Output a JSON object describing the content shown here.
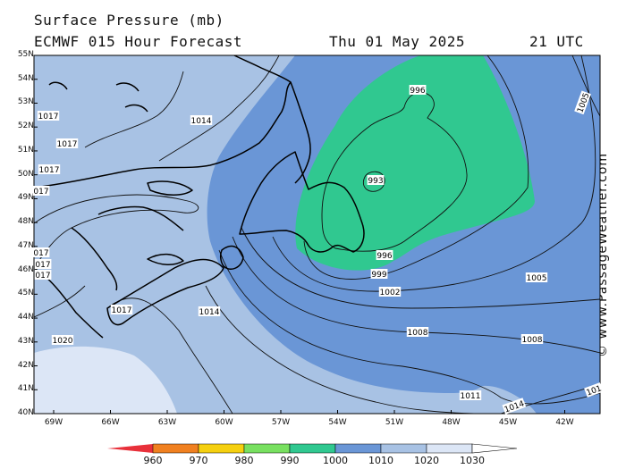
{
  "header": {
    "title": "Surface Pressure (mb)",
    "model_line": "ECMWF 015 Hour Forecast",
    "date": "Thu 01 May 2025",
    "time": "21 UTC"
  },
  "credit": "© www.PassageWeather.com",
  "lat_labels": [
    "55N",
    "54N",
    "53N",
    "52N",
    "51N",
    "50N",
    "49N",
    "48N",
    "47N",
    "46N",
    "45N",
    "44N",
    "43N",
    "42N",
    "41N",
    "40N"
  ],
  "lon_labels": [
    "69W",
    "66W",
    "63W",
    "60W",
    "57W",
    "54W",
    "51W",
    "48W",
    "45W",
    "42W"
  ],
  "contour_labels": {
    "l996a": "996",
    "l993": "993",
    "l996b": "996",
    "l999": "999",
    "l1002": "1002",
    "l1005a": "1005",
    "l1005b": "1005",
    "l1008a": "1008",
    "l1008b": "1008",
    "l1011": "1011",
    "l1014a": "1014",
    "l1014b": "1014",
    "l1014c": "1014",
    "l1017a": "1017",
    "l1017b": "1017",
    "l1017c": "1017",
    "l1017d": "1017",
    "l1017e": "017",
    "l1017f": "017",
    "l1017g": "017",
    "l1017h": "017",
    "l1017i": "1017",
    "l1020": "1020",
    "l101r": "101"
  },
  "colorbar": {
    "labels": [
      "960",
      "970",
      "980",
      "990",
      "1000",
      "1010",
      "1020",
      "1030"
    ],
    "colors": [
      "#e8303a",
      "#f08020",
      "#f5d010",
      "#78e060",
      "#30c890",
      "#6a96d6",
      "#a8c2e4",
      "#dce6f6"
    ]
  },
  "colors": {
    "land": "#a8c2e4",
    "band_1010": "#6a96d6",
    "band_1000": "#30c890",
    "band_1020": "#dce6f6"
  }
}
